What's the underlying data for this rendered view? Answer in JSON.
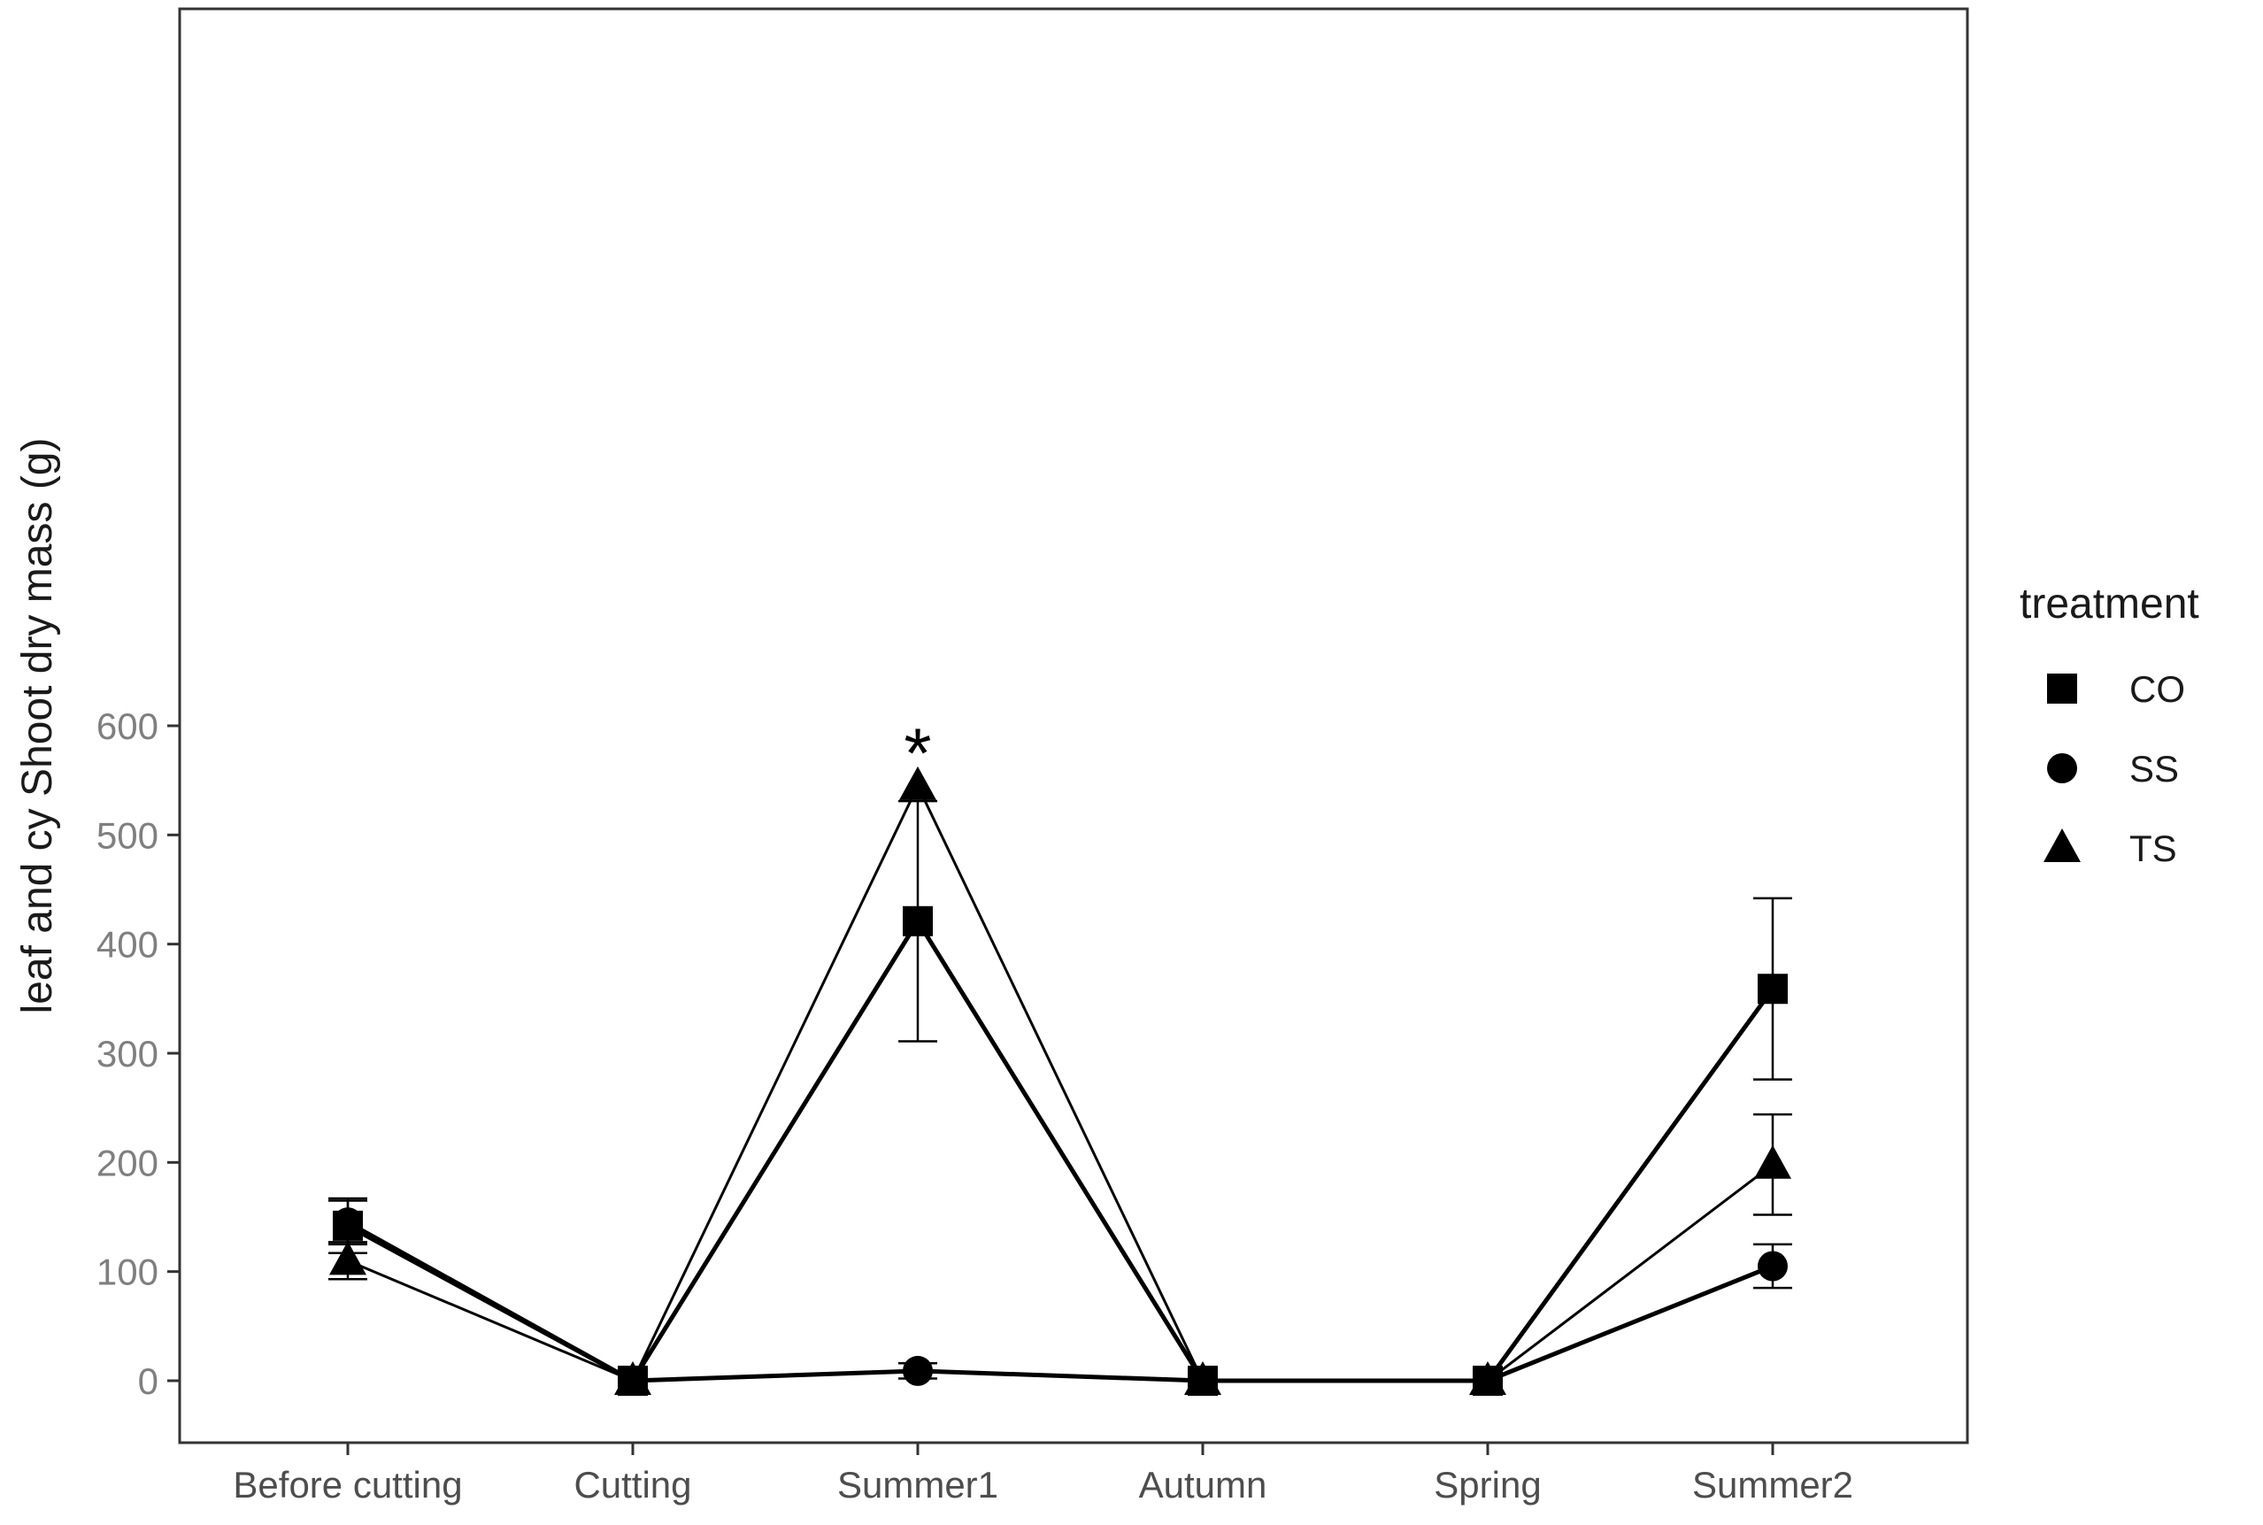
{
  "chart_data": {
    "type": "line",
    "title": "",
    "xlabel": "",
    "ylabel": "leaf and cy Shoot dry mass (g)",
    "categories": [
      "Before cutting",
      "Cutting",
      "Summer1",
      "Autumn",
      "Spring",
      "Summer2"
    ],
    "ylim": [
      -30,
      630
    ],
    "yticks": [
      0,
      100,
      200,
      300,
      400,
      500,
      600
    ],
    "grid": false,
    "legend": {
      "title": "treatment",
      "placement": "right"
    },
    "series": [
      {
        "name": "CO",
        "marker": "square",
        "values": [
          142,
          0,
          421,
          0,
          0,
          359
        ],
        "err": [
          25,
          0,
          110,
          0,
          0,
          83
        ]
      },
      {
        "name": "SS",
        "marker": "circle",
        "values": [
          145,
          0,
          9,
          0,
          0,
          105
        ],
        "err": [
          20,
          0,
          7,
          0,
          0,
          20
        ]
      },
      {
        "name": "TS",
        "marker": "triangle",
        "values": [
          110,
          0,
          545,
          0,
          0,
          198
        ],
        "err": [
          17,
          0,
          0,
          0,
          0,
          46
        ]
      }
    ],
    "annotations": [
      {
        "text": "*",
        "category": "Summer1",
        "y": 585
      }
    ]
  }
}
